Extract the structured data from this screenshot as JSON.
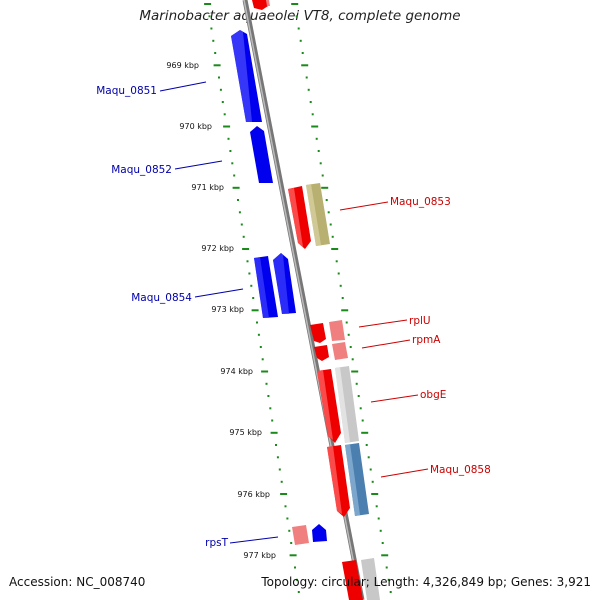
{
  "title": "Marinobacter aquaeolei VT8, complete genome",
  "footer": {
    "accession": "Accession: NC_008740",
    "summary": "Topology: circular; Length: 4,326,849 bp; Genes: 3,921"
  },
  "colors": {
    "forward_gene": "#0000ee",
    "reverse_gene": "#ee0000",
    "reverse_gene_pale": "#f08080",
    "label_forward": "#0000aa",
    "label_reverse": "#cc0000",
    "tick_mark": "#1a8a1a",
    "backbone": "#888888",
    "feature_khaki": "#b8b070",
    "feature_gray": "#c8c8c8",
    "feature_steelblue": "#4a7fb0"
  },
  "scale_labels": [
    "969 kbp",
    "970 kbp",
    "971 kbp",
    "972 kbp",
    "973 kbp",
    "974 kbp",
    "975 kbp",
    "976 kbp",
    "977 kbp"
  ],
  "gene_labels": {
    "maqu_0851": "Maqu_0851",
    "maqu_0852": "Maqu_0852",
    "maqu_0853": "Maqu_0853",
    "maqu_0854": "Maqu_0854",
    "rplU": "rplU",
    "rpmA": "rpmA",
    "obgE": "obgE",
    "maqu_0858": "Maqu_0858",
    "rpsT": "rpsT"
  }
}
